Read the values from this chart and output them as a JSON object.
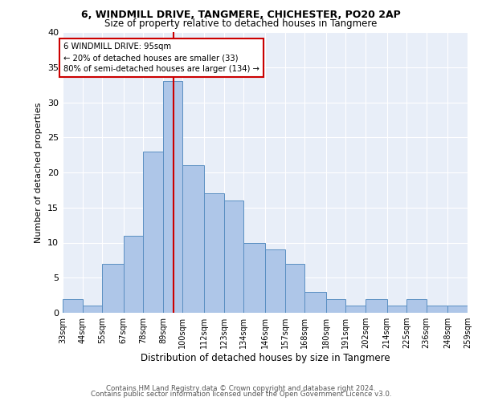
{
  "title1": "6, WINDMILL DRIVE, TANGMERE, CHICHESTER, PO20 2AP",
  "title2": "Size of property relative to detached houses in Tangmere",
  "xlabel": "Distribution of detached houses by size in Tangmere",
  "ylabel": "Number of detached properties",
  "property_label": "6 WINDMILL DRIVE: 95sqm",
  "annotation_line1": "← 20% of detached houses are smaller (33)",
  "annotation_line2": "80% of semi-detached houses are larger (134) →",
  "footer1": "Contains HM Land Registry data © Crown copyright and database right 2024.",
  "footer2": "Contains public sector information licensed under the Open Government Licence v3.0.",
  "bin_labels": [
    "33sqm",
    "44sqm",
    "55sqm",
    "67sqm",
    "78sqm",
    "89sqm",
    "100sqm",
    "112sqm",
    "123sqm",
    "134sqm",
    "146sqm",
    "157sqm",
    "168sqm",
    "180sqm",
    "191sqm",
    "202sqm",
    "214sqm",
    "225sqm",
    "236sqm",
    "248sqm",
    "259sqm"
  ],
  "bar_values": [
    2,
    1,
    7,
    11,
    23,
    33,
    21,
    17,
    16,
    10,
    9,
    7,
    3,
    2,
    1,
    2,
    1,
    2,
    1,
    1
  ],
  "bar_color": "#aec6e8",
  "bar_edge_color": "#5a8fc2",
  "vline_x": 95,
  "vline_color": "#cc0000",
  "annotation_box_color": "#cc0000",
  "background_color": "#e8eef8",
  "ylim": [
    0,
    40
  ],
  "yticks": [
    0,
    5,
    10,
    15,
    20,
    25,
    30,
    35,
    40
  ]
}
